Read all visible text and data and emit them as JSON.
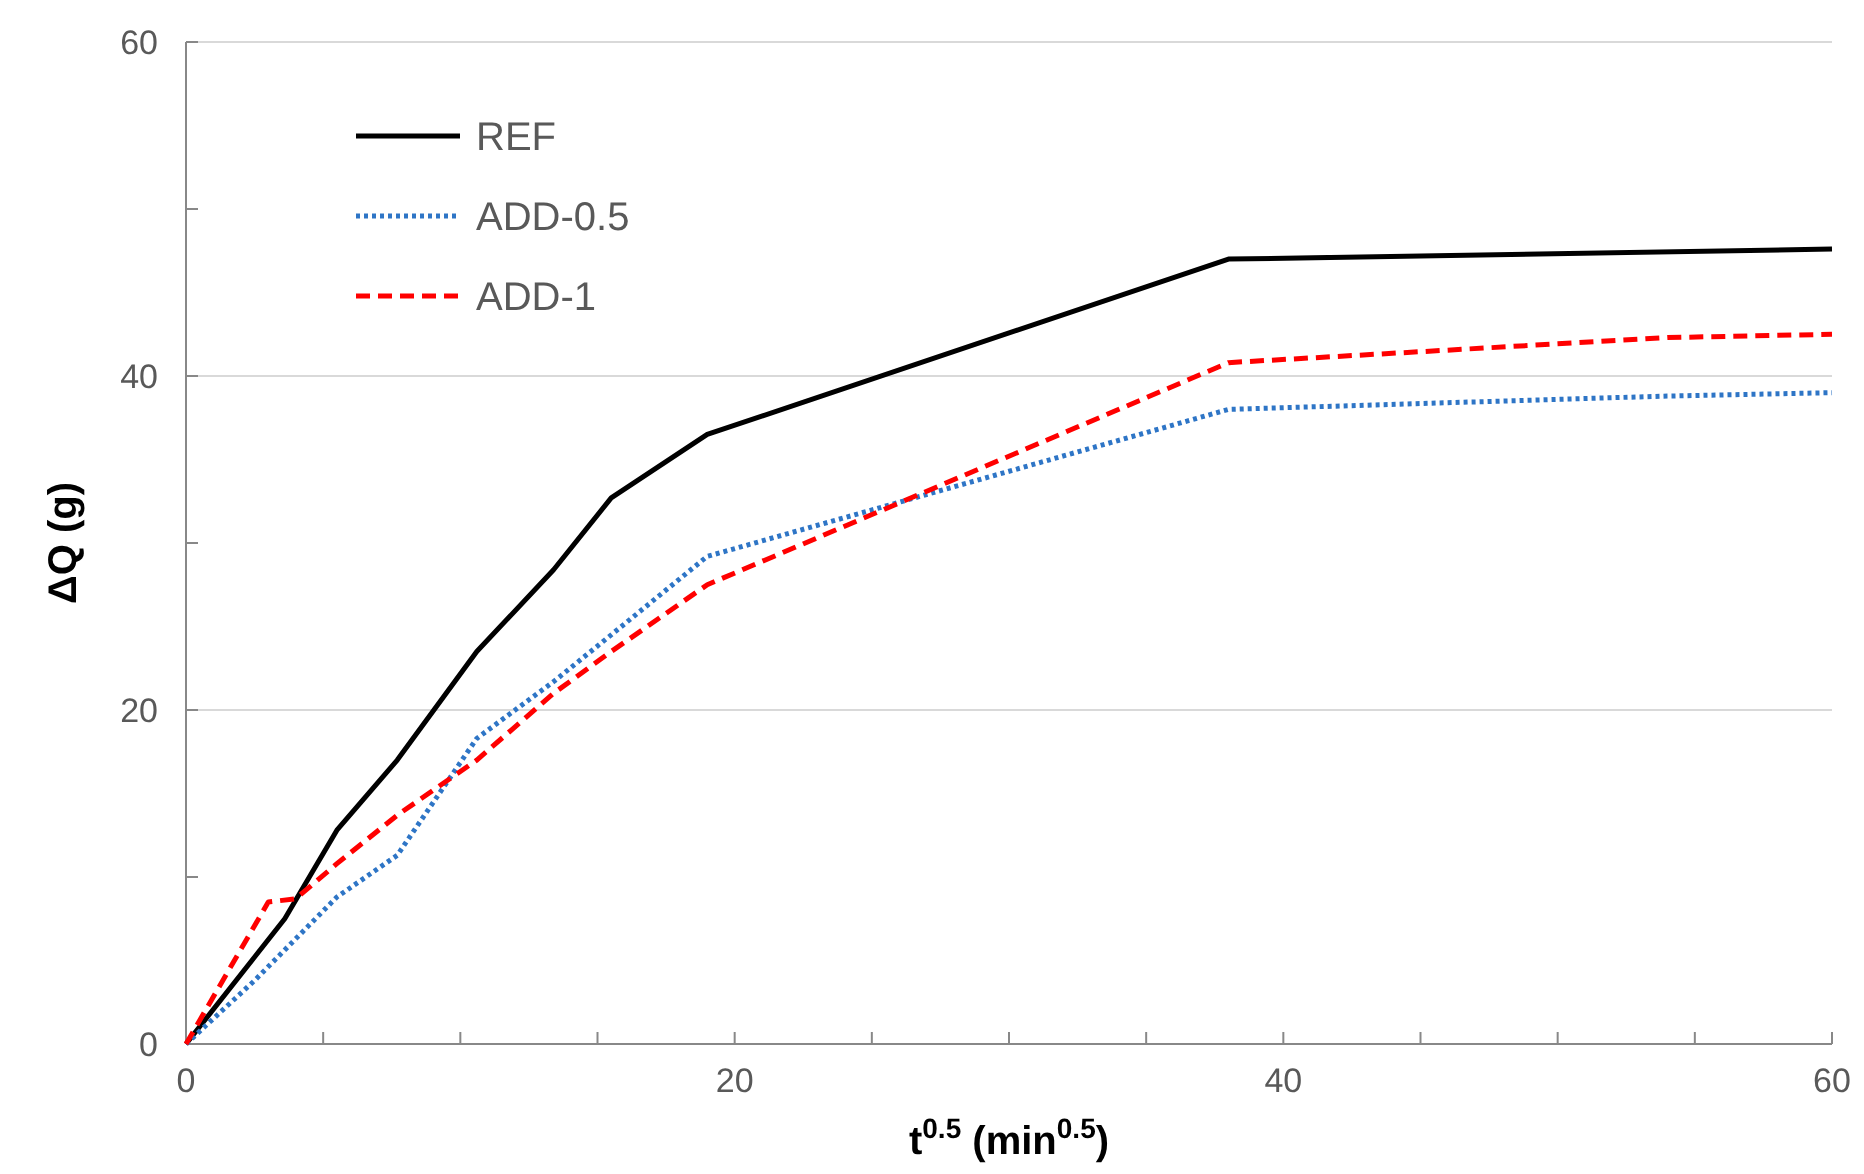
{
  "chart_data": {
    "type": "line",
    "xlabel": "t$^{0.5}$ (min$^{0.5}$)",
    "ylabel": "ΔQ (g)",
    "xlim": [
      0,
      60
    ],
    "ylim": [
      0,
      60
    ],
    "xticks": [
      0,
      {
        "value": 5,
        "label": null
      },
      {
        "value": 10,
        "label": null
      },
      {
        "value": 15,
        "label": null
      },
      20,
      {
        "value": 25,
        "label": null
      },
      {
        "value": 30,
        "label": null
      },
      {
        "value": 35,
        "label": null
      },
      40,
      {
        "value": 45,
        "label": null
      },
      {
        "value": 50,
        "label": null
      },
      {
        "value": 55,
        "label": null
      },
      60
    ],
    "yticks": [
      0,
      {
        "value": 10,
        "label": null
      },
      20,
      {
        "value": 30,
        "label": null
      },
      40,
      {
        "value": 50,
        "label": null
      },
      60
    ],
    "grid": "y",
    "legend": "top left",
    "marker": "none",
    "series": [
      {
        "name": "REF",
        "color": "#000000",
        "line_style": "solid",
        "x": [
          0,
          3.6,
          5.5,
          7.7,
          10.6,
          13.4,
          15.5,
          19,
          38,
          60
        ],
        "values": [
          0,
          7.5,
          12.8,
          17,
          23.5,
          28.4,
          32.7,
          36.5,
          47,
          47.6
        ]
      },
      {
        "name": "ADD-0.5",
        "color": "#2e75c6",
        "line_style": "dotted",
        "x": [
          0,
          2.5,
          5.5,
          7.7,
          10.6,
          13.4,
          15.5,
          19,
          38,
          54,
          60
        ],
        "values": [
          0,
          3.8,
          8.8,
          11.3,
          18.3,
          21.7,
          24.5,
          29.2,
          38,
          38.8,
          39
        ]
      },
      {
        "name": "ADD-1",
        "color": "#ff0000",
        "line_style": "dashed",
        "x": [
          0,
          3,
          4,
          5.5,
          7.7,
          10.6,
          13.4,
          15.5,
          19,
          38,
          54,
          60
        ],
        "values": [
          0,
          8.5,
          8.7,
          10.8,
          13.7,
          17,
          21,
          23.5,
          27.5,
          40.8,
          42.3,
          42.5
        ]
      }
    ]
  }
}
